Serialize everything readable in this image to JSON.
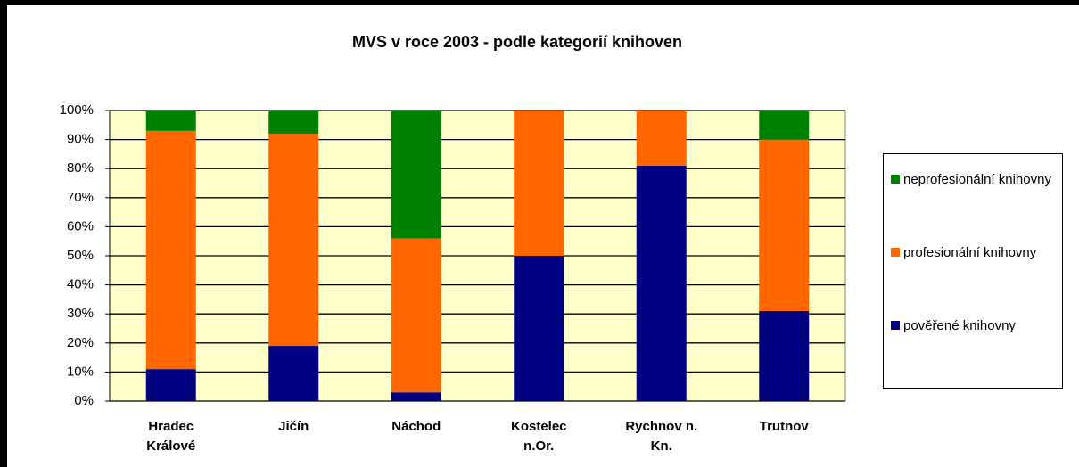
{
  "chart_data": {
    "type": "stacked_bar_100",
    "title": "MVS v roce 2003 - podle kategorií knihoven",
    "categories": [
      "Hradec Králové",
      "Jičín",
      "Náchod",
      "Kostelec n.Or.",
      "Rychnov n. Kn.",
      "Trutnov"
    ],
    "series": [
      {
        "name": "pověřené knihovny",
        "color": "#000080",
        "values": [
          11,
          19,
          3,
          50,
          81,
          31
        ]
      },
      {
        "name": "profesionální knihovny",
        "color": "#ff6600",
        "values": [
          82,
          73,
          53,
          50,
          19,
          59
        ]
      },
      {
        "name": "neprofesionální knihovny",
        "color": "#008000",
        "values": [
          7,
          8,
          44,
          0,
          0,
          10
        ]
      }
    ],
    "ylim": [
      0,
      100
    ],
    "yticks": [
      {
        "value": 0,
        "label": "0%"
      },
      {
        "value": 10,
        "label": "10%"
      },
      {
        "value": 20,
        "label": "20%"
      },
      {
        "value": 30,
        "label": "30%"
      },
      {
        "value": 40,
        "label": "40%"
      },
      {
        "value": 50,
        "label": "50%"
      },
      {
        "value": 60,
        "label": "60%"
      },
      {
        "value": 70,
        "label": "70%"
      },
      {
        "value": 80,
        "label": "80%"
      },
      {
        "value": 90,
        "label": "90%"
      },
      {
        "value": 100,
        "label": "100%"
      }
    ],
    "grid": true,
    "plot_background": "#ffffcc",
    "legend": "right"
  }
}
